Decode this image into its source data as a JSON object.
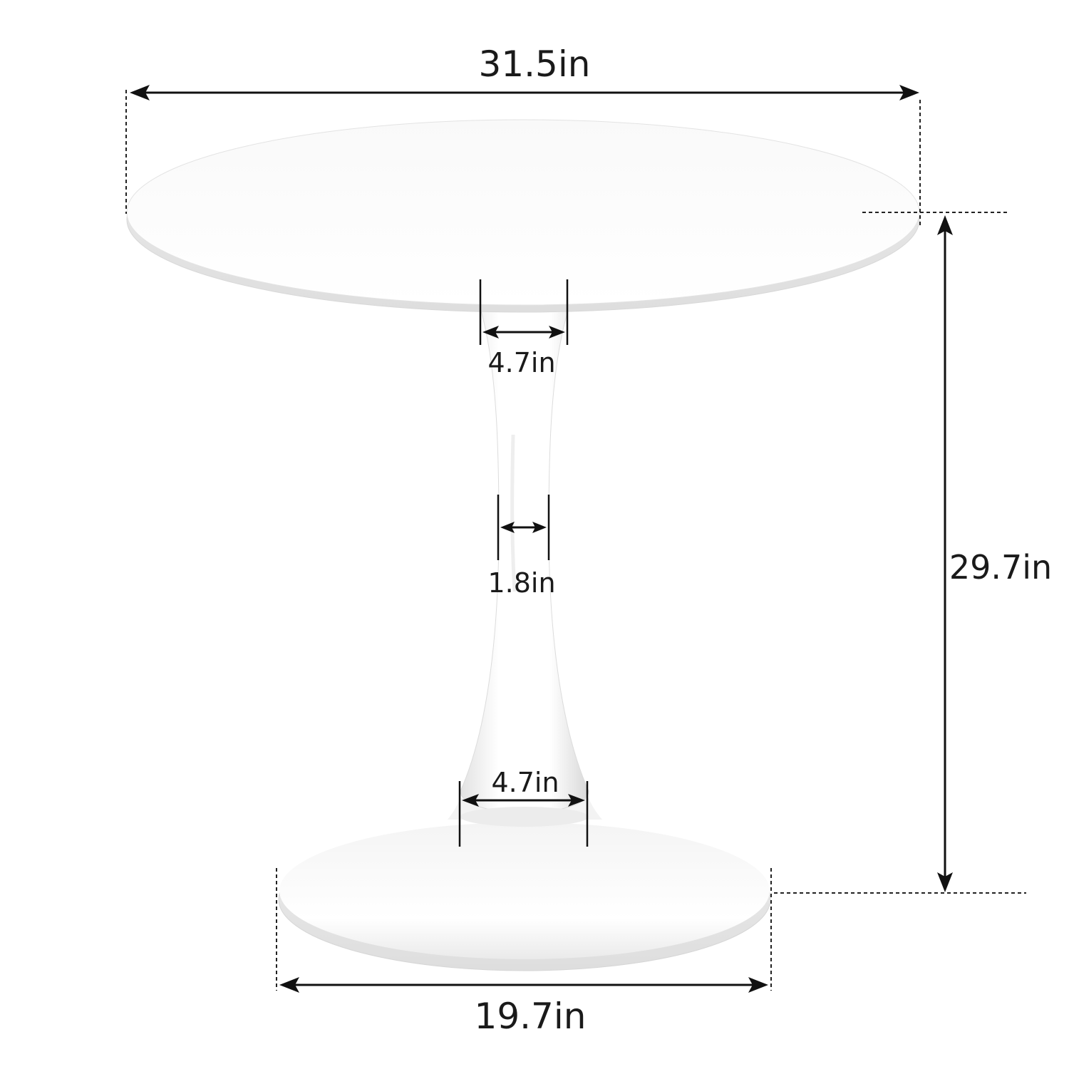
{
  "dimensions": {
    "top_diameter": "31.5in",
    "overall_height": "29.7in",
    "pedestal_top_width": "4.7in",
    "pedestal_min_width": "1.8in",
    "pedestal_bottom_width": "4.7in",
    "base_diameter": "19.7in"
  },
  "colors": {
    "product_white": "#ffffff",
    "product_shadow": "#d9d9d9",
    "dimension_lines": "#111111",
    "text": "#1a1a1a",
    "background": "#ffffff"
  }
}
